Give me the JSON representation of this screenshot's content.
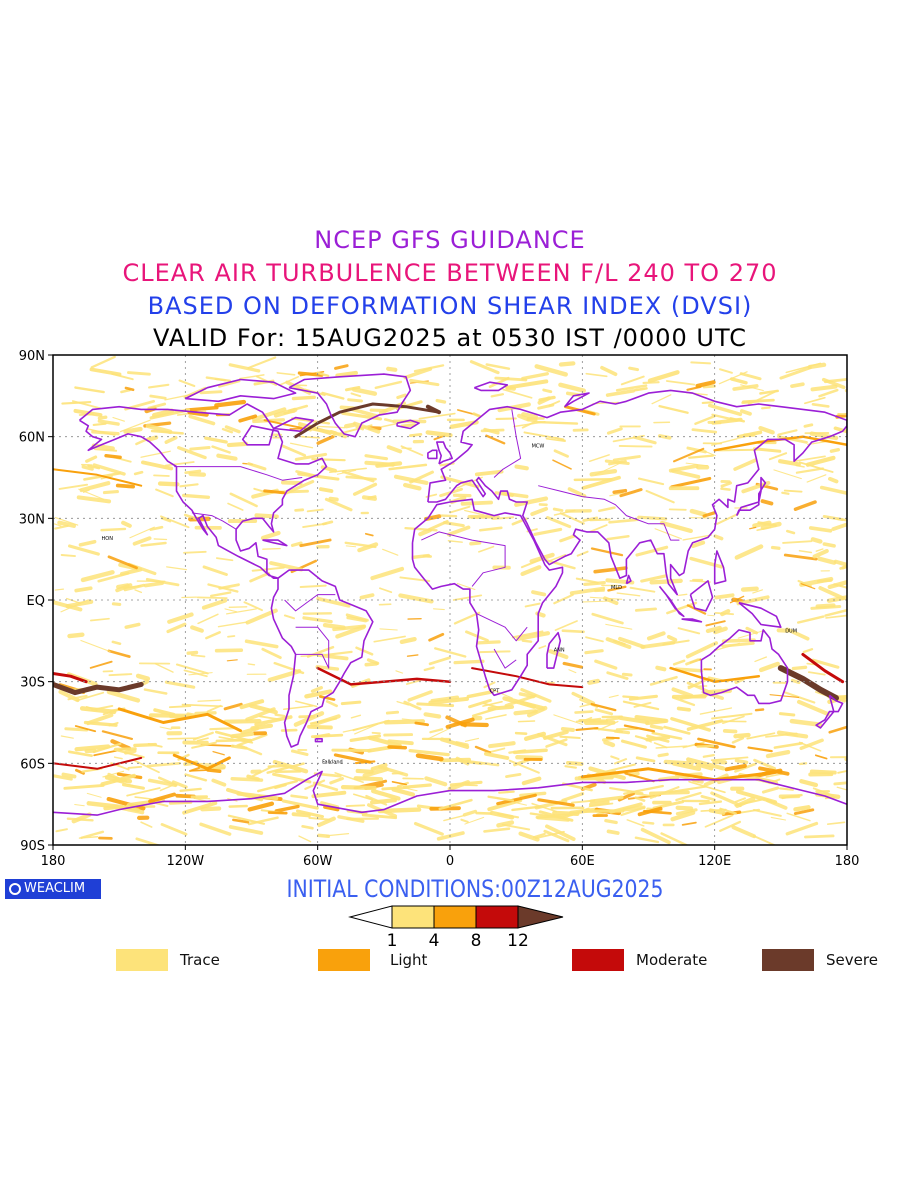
{
  "titles": {
    "line1": {
      "text": "NCEP GFS GUIDANCE",
      "color": "#9b1fd6"
    },
    "line2": {
      "text": "CLEAR AIR TURBULENCE BETWEEN F/L 240 TO 270",
      "color": "#e8157a"
    },
    "line3": {
      "text": "BASED ON DEFORMATION SHEAR INDEX (DVSI)",
      "color": "#2340ea"
    },
    "line4": {
      "text": "VALID For: 15AUG2025 at 0530 IST /0000 UTC",
      "color": "#000000"
    }
  },
  "map": {
    "lat_labels": [
      "90N",
      "60N",
      "30N",
      "EQ",
      "30S",
      "60S",
      "90S"
    ],
    "lon_labels": [
      "180",
      "120W",
      "60W",
      "0",
      "60E",
      "120E",
      "180"
    ],
    "lat_range": [
      -90,
      90
    ],
    "lon_range": [
      -180,
      180
    ],
    "grid": true,
    "coastline_color": "#9b1fd6",
    "station_labels": [
      "Falkland",
      "HON",
      "CPT",
      "DUM",
      "ANN",
      "MCW",
      "MLD"
    ]
  },
  "logo": {
    "text": "WEACLIM",
    "icon": "copyright-circle-icon",
    "color": "#1f3fd6"
  },
  "initial_conditions": {
    "text": "INITIAL CONDITIONS:00Z12AUG2025",
    "color": "#3a5ff0"
  },
  "colorbar": {
    "ticks": [
      "1",
      "4",
      "8",
      "12"
    ],
    "colors": [
      "#ffffff",
      "#fde37a",
      "#f9a10c",
      "#c40a0a",
      "#6b3a2a"
    ]
  },
  "legend": [
    {
      "label": "Trace",
      "color": "#fde37a"
    },
    {
      "label": "Light",
      "color": "#f9a10c"
    },
    {
      "label": "Moderate",
      "color": "#c40a0a"
    },
    {
      "label": "Severe",
      "color": "#6b3a2a"
    }
  ]
}
